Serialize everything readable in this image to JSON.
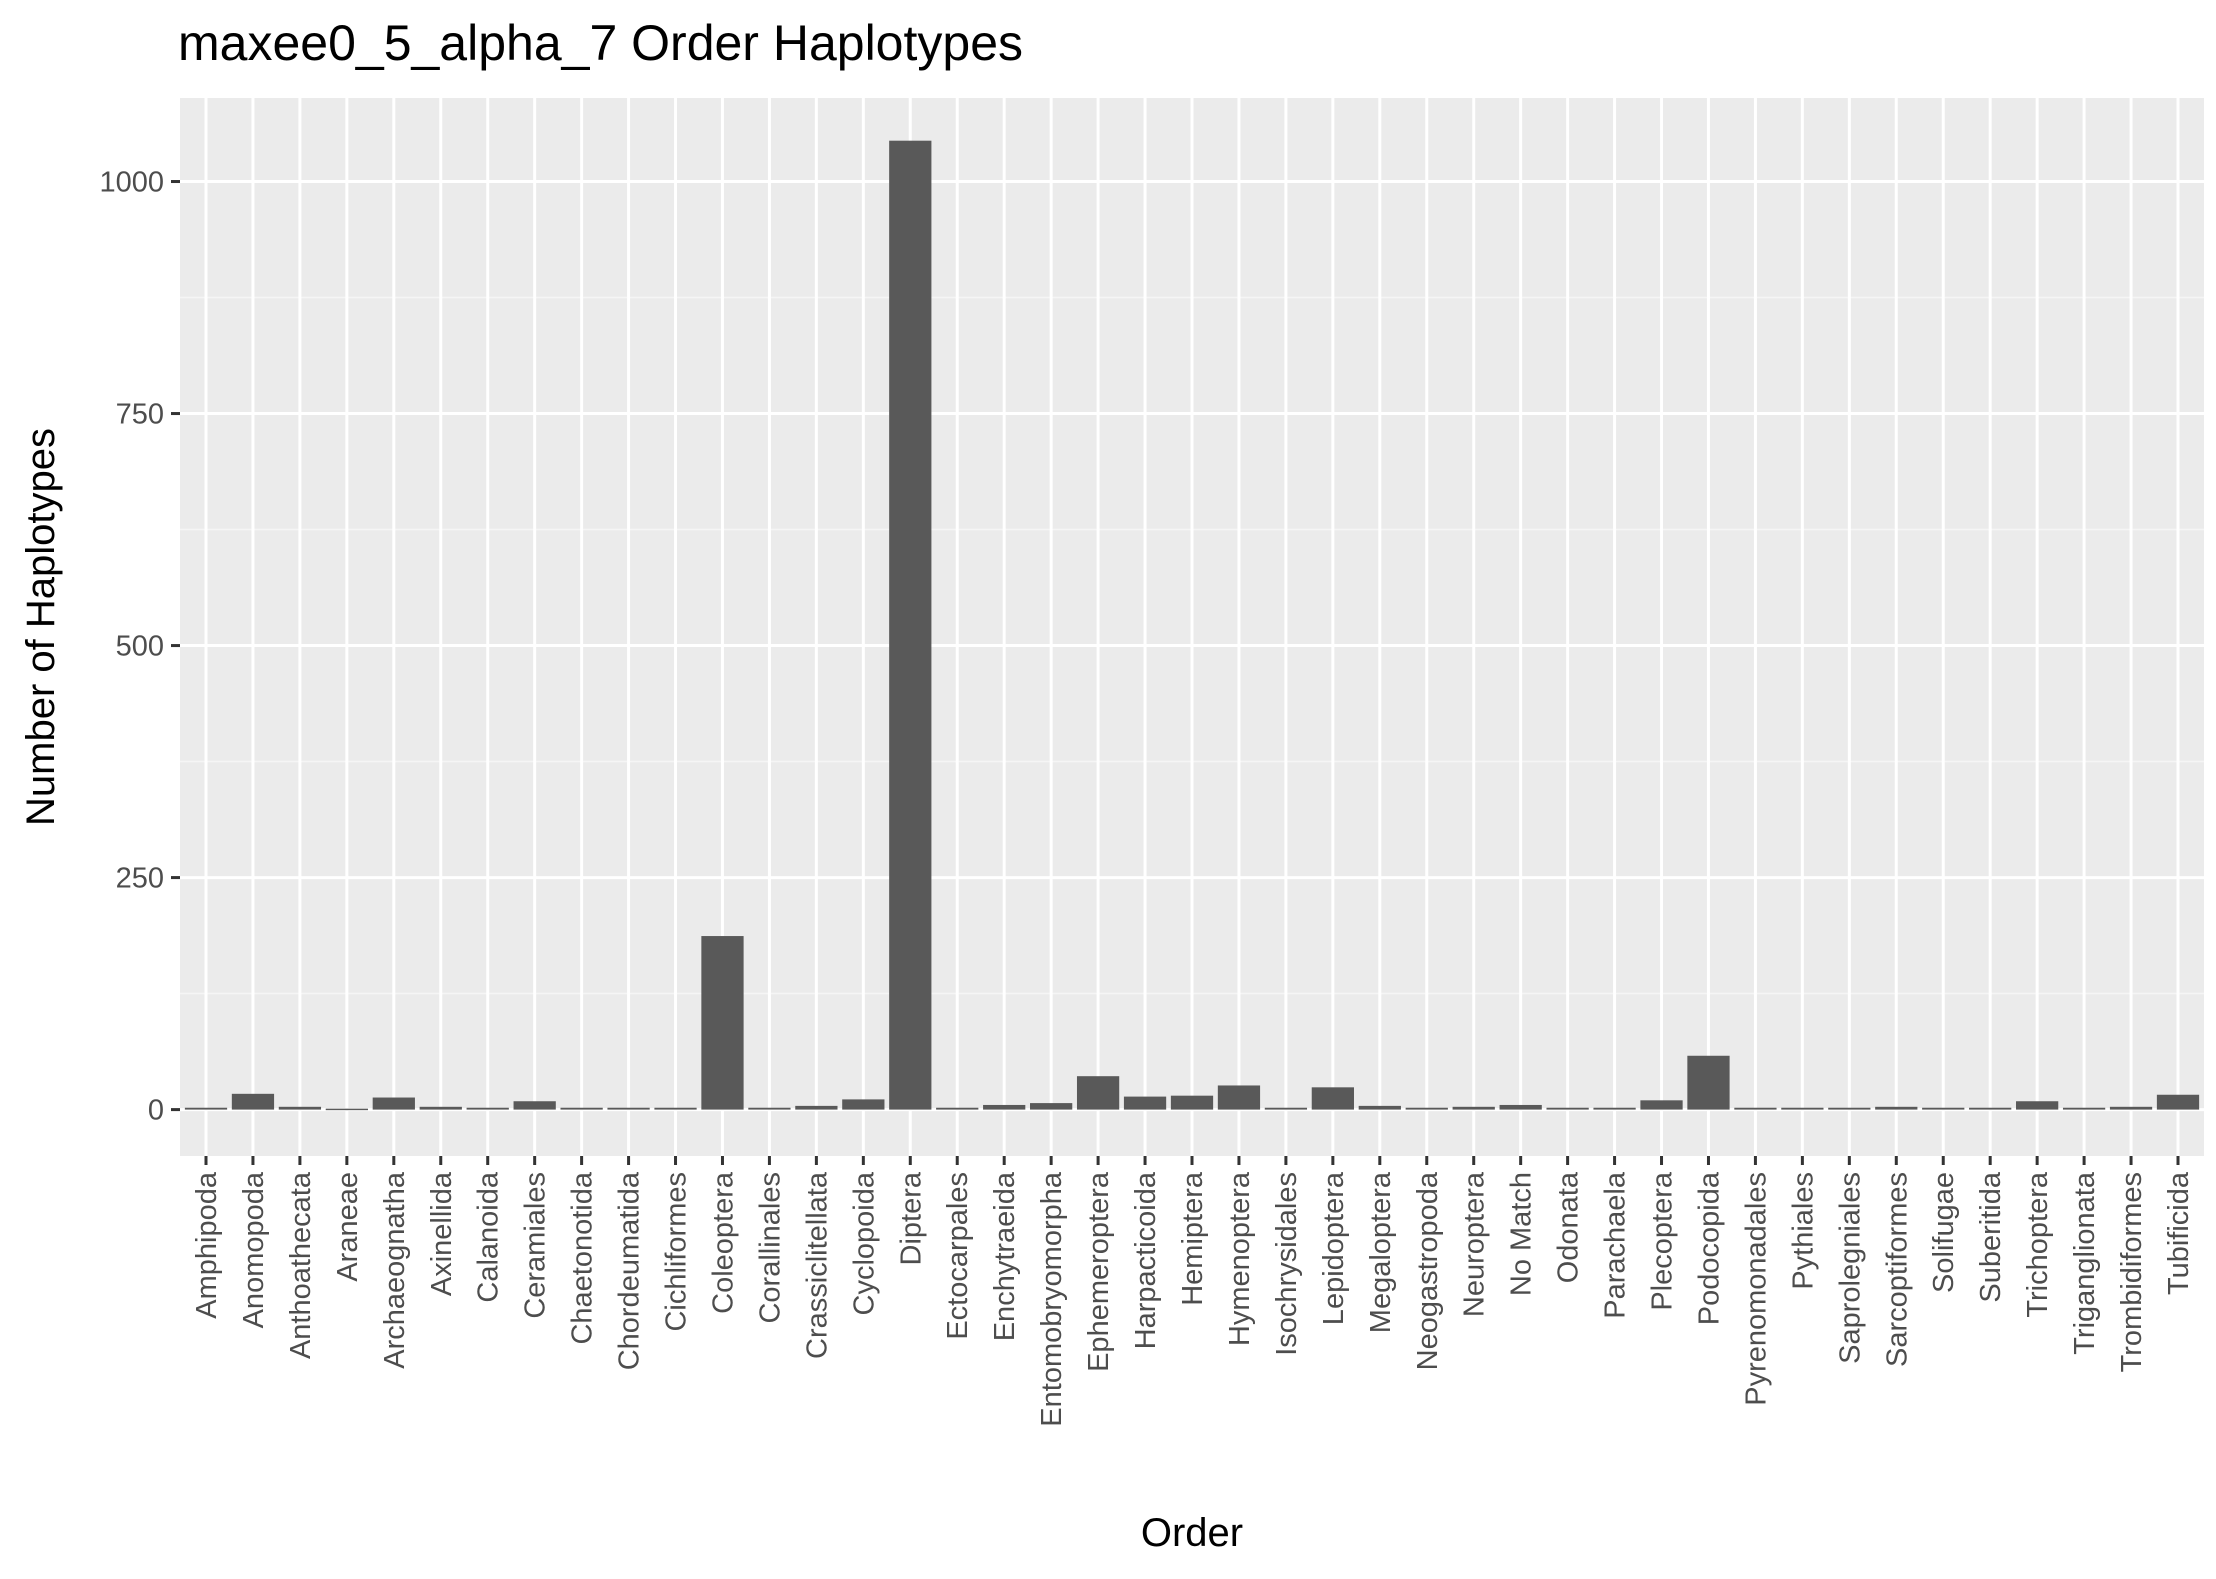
{
  "chart_data": {
    "type": "bar",
    "title": "maxee0_5_alpha_7 Order Haplotypes",
    "xlabel": "Order",
    "ylabel": "Number of Haplotypes",
    "ylim": [
      -50,
      1090
    ],
    "yticks": [
      0,
      250,
      500,
      750,
      1000
    ],
    "grid": true,
    "categories": [
      "Amphipoda",
      "Anomopoda",
      "Anthoathecata",
      "Araneae",
      "Archaeognatha",
      "Axinellida",
      "Calanoida",
      "Ceramiales",
      "Chaetonotida",
      "Chordeumatida",
      "Cichliformes",
      "Coleoptera",
      "Corallinales",
      "Crassiclitellata",
      "Cyclopoida",
      "Diptera",
      "Ectocarpales",
      "Enchytraeida",
      "Entomobryomorpha",
      "Ephemeroptera",
      "Harpacticoida",
      "Hemiptera",
      "Hymenoptera",
      "Isochrysidales",
      "Lepidoptera",
      "Megaloptera",
      "Neogastropoda",
      "Neuroptera",
      "No Match",
      "Odonata",
      "Parachaela",
      "Plecoptera",
      "Podocopida",
      "Pyrenomonadales",
      "Pythiales",
      "Saprolegniales",
      "Sarcoptiformes",
      "Solifugae",
      "Suberitida",
      "Trichoptera",
      "Triganglionata",
      "Trombidiformes",
      "Tubificida"
    ],
    "values": [
      2,
      17,
      3,
      1,
      13,
      3,
      2,
      9,
      2,
      2,
      2,
      187,
      2,
      4,
      11,
      1044,
      2,
      5,
      7,
      36,
      14,
      15,
      26,
      2,
      24,
      4,
      2,
      3,
      5,
      2,
      2,
      10,
      58,
      2,
      2,
      2,
      3,
      2,
      2,
      9,
      2,
      3,
      16
    ]
  },
  "colors": {
    "panel_background": "#ebebeb",
    "grid_major": "#ffffff",
    "grid_minor": "#f5f5f5",
    "bar_fill": "#595959",
    "tick_color": "#333333",
    "tick_label_color": "#4d4d4d",
    "text_color": "#000000"
  }
}
